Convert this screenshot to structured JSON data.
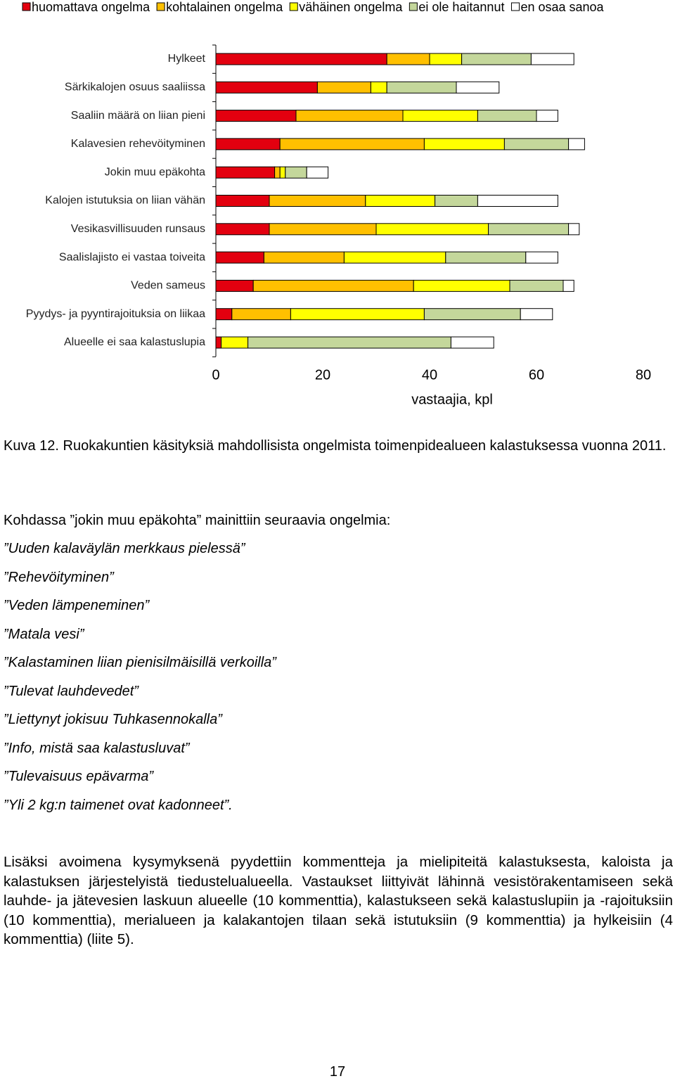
{
  "chart_data": {
    "type": "stacked-bar-horizontal",
    "categories": [
      "Hylkeet",
      "Särkikalojen osuus saaliissa",
      "Saaliin määrä on liian pieni",
      "Kalavesien rehevöityminen",
      "Jokin muu epäkohta",
      "Kalojen istutuksia on liian vähän",
      "Vesikasvillisuuden runsaus",
      "Saalislajisto ei vastaa toiveita",
      "Veden sameus",
      "Pyydys- ja pyyntirajoituksia on liikaa",
      "Alueelle ei saa kalastuslupia"
    ],
    "series": [
      {
        "name": "huomattava ongelma",
        "color": "#e3000f",
        "values": [
          32,
          19,
          15,
          12,
          11,
          10,
          10,
          9,
          7,
          3,
          1
        ]
      },
      {
        "name": "kohtalainen ongelma",
        "color": "#ffc000",
        "values": [
          8,
          10,
          20,
          27,
          1,
          18,
          20,
          15,
          30,
          11,
          0
        ]
      },
      {
        "name": "vähäinen ongelma",
        "color": "#ffff00",
        "values": [
          6,
          3,
          14,
          15,
          1,
          13,
          21,
          19,
          18,
          25,
          5
        ]
      },
      {
        "name": "ei ole haitannut",
        "color": "#c4d79b",
        "values": [
          13,
          13,
          11,
          12,
          4,
          8,
          15,
          15,
          10,
          18,
          38
        ]
      },
      {
        "name": "en osaa sanoa",
        "color": "#ffffff",
        "values": [
          8,
          8,
          4,
          3,
          4,
          15,
          2,
          6,
          2,
          6,
          8
        ]
      }
    ],
    "x_label": "vastaajia, kpl",
    "xlim": [
      0,
      80
    ],
    "xticks": [
      0,
      20,
      40,
      60,
      80
    ],
    "legend": "top"
  },
  "caption": "Kuva 12. Ruokakuntien käsityksiä mahdollisista ongelmista toimenpidealueen kalastuksessa vuonna 2011.",
  "intro": "Kohdassa ”jokin muu epäkohta” mainittiin seuraavia ongelmia:",
  "items": [
    "”Uuden kalaväylän merkkaus pielessä”",
    "”Rehevöityminen”",
    "”Veden lämpeneminen”",
    "”Matala vesi”",
    "”Kalastaminen liian pienisilmäisillä verkoilla”",
    "”Tulevat lauhdevedet”",
    "”Liettynyt jokisuu Tuhkasennokalla”",
    "”Info, mistä saa kalastusluvat”",
    "”Tulevaisuus epävarma”",
    "”Yli 2 kg:n taimenet ovat kadonneet”."
  ],
  "paragraph": "Lisäksi avoimena kysymyksenä pyydettiin kommentteja ja mielipiteitä kalastuksesta, kaloista ja kalastuksen järjestelyistä tiedustelualueella. Vastaukset liittyivät lähinnä vesistörakentamiseen sekä lauhde- ja jätevesien laskuun alueelle (10 kommenttia), kalastukseen sekä kalastuslupiin ja -rajoituksiin (10 kommenttia), merialueen ja kalakantojen tilaan sekä istutuksiin (9 kommenttia) ja hylkeisiin (4 kommenttia) (liite 5).",
  "page_number": "17"
}
